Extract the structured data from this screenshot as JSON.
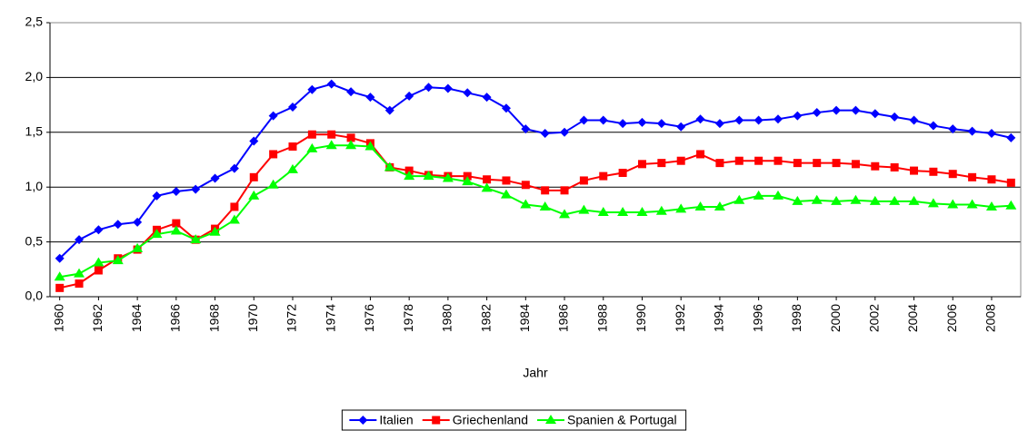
{
  "chart_data": {
    "type": "line",
    "x_label": "Jahr",
    "x": [
      1960,
      1961,
      1962,
      1963,
      1964,
      1965,
      1966,
      1967,
      1968,
      1969,
      1970,
      1971,
      1972,
      1973,
      1974,
      1975,
      1976,
      1977,
      1978,
      1979,
      1980,
      1981,
      1982,
      1983,
      1984,
      1985,
      1986,
      1987,
      1988,
      1989,
      1990,
      1991,
      1992,
      1993,
      1994,
      1995,
      1996,
      1997,
      1998,
      1999,
      2000,
      2001,
      2002,
      2003,
      2004,
      2005,
      2006,
      2007,
      2008,
      2009
    ],
    "xlim": [
      1959.5,
      2009.5
    ],
    "xticks": [
      1960,
      1962,
      1964,
      1966,
      1968,
      1970,
      1972,
      1974,
      1976,
      1978,
      1980,
      1982,
      1984,
      1986,
      1988,
      1990,
      1992,
      1994,
      1996,
      1998,
      2000,
      2002,
      2004,
      2006,
      2008
    ],
    "ylim": [
      0,
      2.5
    ],
    "yticks": [
      {
        "value": 0,
        "label": "0,0"
      },
      {
        "value": 0.5,
        "label": "0,5"
      },
      {
        "value": 1,
        "label": "1,0"
      },
      {
        "value": 1.5,
        "label": "1,5"
      },
      {
        "value": 2,
        "label": "2,0"
      },
      {
        "value": 2.5,
        "label": "2,5"
      }
    ],
    "grid": true,
    "legend": "bottom",
    "series": [
      {
        "name": "Italien",
        "color": "#0000ff",
        "marker": "diamond",
        "values": [
          0.35,
          0.52,
          0.61,
          0.66,
          0.68,
          0.92,
          0.96,
          0.98,
          1.08,
          1.17,
          1.42,
          1.65,
          1.73,
          1.89,
          1.94,
          1.87,
          1.82,
          1.7,
          1.83,
          1.91,
          1.9,
          1.86,
          1.82,
          1.72,
          1.53,
          1.49,
          1.5,
          1.61,
          1.61,
          1.58,
          1.59,
          1.58,
          1.55,
          1.62,
          1.58,
          1.61,
          1.61,
          1.62,
          1.65,
          1.68,
          1.7,
          1.7,
          1.67,
          1.64,
          1.61,
          1.56,
          1.53,
          1.51,
          1.49,
          1.45
        ]
      },
      {
        "name": "Griechenland",
        "color": "#ff0000",
        "marker": "square",
        "values": [
          0.08,
          0.12,
          0.24,
          0.35,
          0.43,
          0.61,
          0.67,
          0.52,
          0.62,
          0.82,
          1.09,
          1.3,
          1.37,
          1.48,
          1.48,
          1.45,
          1.4,
          1.18,
          1.15,
          1.11,
          1.1,
          1.1,
          1.07,
          1.06,
          1.02,
          0.97,
          0.97,
          1.06,
          1.1,
          1.13,
          1.21,
          1.22,
          1.24,
          1.3,
          1.22,
          1.24,
          1.24,
          1.24,
          1.22,
          1.22,
          1.22,
          1.21,
          1.19,
          1.18,
          1.15,
          1.14,
          1.12,
          1.09,
          1.07,
          1.04
        ]
      },
      {
        "name": "Spanien & Portugal",
        "color": "#00ff00",
        "marker": "triangle",
        "values": [
          0.18,
          0.21,
          0.31,
          0.33,
          0.44,
          0.57,
          0.6,
          0.52,
          0.59,
          0.7,
          0.92,
          1.02,
          1.16,
          1.35,
          1.38,
          1.38,
          1.37,
          1.18,
          1.1,
          1.1,
          1.08,
          1.05,
          0.99,
          0.93,
          0.84,
          0.82,
          0.75,
          0.79,
          0.77,
          0.77,
          0.77,
          0.78,
          0.8,
          0.82,
          0.82,
          0.88,
          0.92,
          0.92,
          0.87,
          0.88,
          0.87,
          0.88,
          0.87,
          0.87,
          0.87,
          0.85,
          0.84,
          0.84,
          0.82,
          0.83
        ]
      }
    ]
  }
}
